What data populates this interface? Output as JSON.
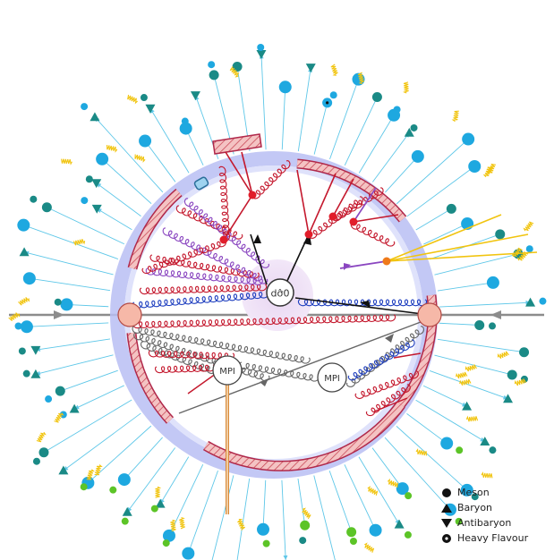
{
  "vertices": {
    "hard": "dσ̂0",
    "mpi_left": "MPI",
    "mpi_right": "MPI"
  },
  "legend": [
    {
      "label": "Meson",
      "icon": "meson-icon"
    },
    {
      "label": "Baryon",
      "icon": "baryon-icon"
    },
    {
      "label": "Antibaryon",
      "icon": "antibaryon-icon"
    },
    {
      "label": "Heavy Flavour",
      "icon": "heavy-flavour-icon"
    }
  ],
  "colors": {
    "meson_cyan": "#1ea8e0",
    "meson_teal": "#1a8a86",
    "meson_green": "#5cc427",
    "gluon_red": "#c4182d",
    "gluon_blue": "#1f3fbf",
    "gluon_purple": "#8a46c0",
    "gluon_gray": "#666666",
    "photon_yellow": "#f1c40f",
    "ring_lavender": "#b9bff2",
    "beam_gray": "#888888",
    "cluster_pink": "#f2b3b3",
    "incoming_pink": "#f5b7a5"
  }
}
